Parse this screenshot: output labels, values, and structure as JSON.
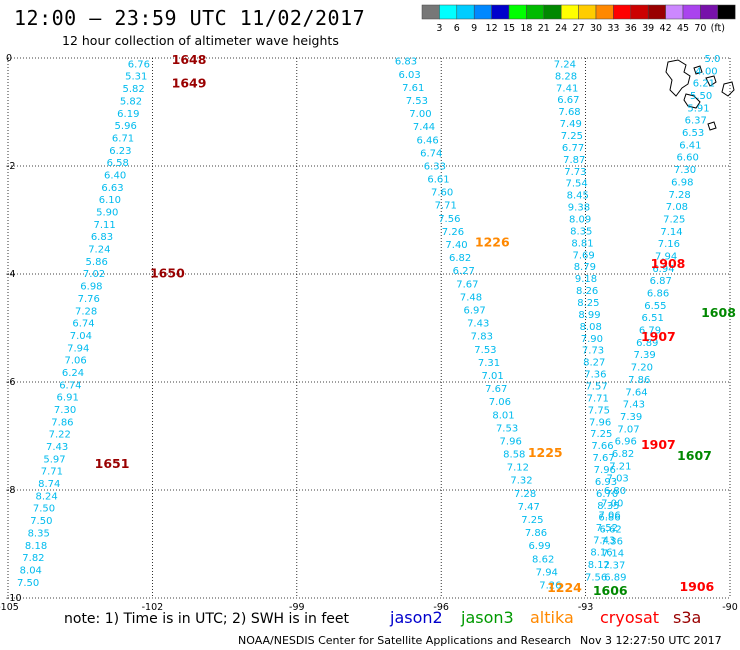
{
  "header": {
    "title": "12:00 – 23:59 UTC 11/02/2017",
    "subtitle": "12 hour collection of altimeter wave heights"
  },
  "scale": {
    "colors": [
      "#777777",
      "#00ffff",
      "#00ccff",
      "#0088ff",
      "#0000cc",
      "#00ff00",
      "#00bb00",
      "#008800",
      "#ffff00",
      "#ffcc00",
      "#ff8800",
      "#ff0000",
      "#cc0000",
      "#990000",
      "#cc88ff",
      "#aa44ee",
      "#7711aa",
      "#000000"
    ],
    "labels": [
      "3",
      "6",
      "9",
      "12",
      "15",
      "18",
      "21",
      "24",
      "27",
      "30",
      "33",
      "36",
      "39",
      "42",
      "45",
      "70",
      "(ft)"
    ]
  },
  "footer": {
    "note": "note: 1) Time is in UTC; 2) SWH is in feet",
    "legend": [
      {
        "label": "jason2",
        "color": "#0000cc"
      },
      {
        "label": "jason3",
        "color": "#009900"
      },
      {
        "label": "altika",
        "color": "#ff8800"
      },
      {
        "label": "cryosat",
        "color": "#ff0000"
      },
      {
        "label": "s3a",
        "color": "#990000"
      }
    ],
    "credit_left": "NOAA/NESDIS Center for Satellite Applications and Research",
    "credit_right": "Nov  3 12:27:50 UTC 2017"
  },
  "chart_data": {
    "type": "scatter",
    "title": "12:00 – 23:59 UTC 11/02/2017",
    "subtitle": "12 hour collection of altimeter wave heights",
    "xlim": [
      -105,
      -90
    ],
    "ylim": [
      -10,
      0
    ],
    "xticks": [
      -105,
      -102,
      -99,
      -96,
      -93,
      -90
    ],
    "yticks": [
      0,
      -2,
      -4,
      -6,
      -8,
      -10
    ],
    "xtick_labels": [
      "-105",
      "-102",
      "-99",
      "-96",
      "-93",
      "-90"
    ],
    "ytick_labels": [
      "0",
      "-2",
      "-4",
      "-6",
      "-8",
      "-10"
    ],
    "grid": true,
    "units": "ft",
    "tracks": [
      {
        "satellite": "s3a",
        "color": "#00bbee",
        "lat0": -0.1,
        "lon0": -102.05,
        "lat1": -9.7,
        "lon1": -104.35,
        "swh": [
          "6.76",
          "5.31",
          "5.82",
          "5.82",
          "6.19",
          "5.96",
          "6.71",
          "6.23",
          "6.58",
          "6.40",
          "6.63",
          "6.10",
          "5.90",
          "7.11",
          "6.83",
          "7.24",
          "5.86",
          "7.02",
          "6.98",
          "7.76",
          "7.28",
          "6.74",
          "7.04",
          "7.94",
          "7.06",
          "6.24",
          "6.74",
          "6.91",
          "7.30",
          "7.86",
          "7.22",
          "7.43",
          "5.97",
          "7.71",
          "8.74",
          "8.24",
          "7.50",
          "7.50",
          "8.35",
          "8.18",
          "7.82",
          "8.04",
          "7.50"
        ]
      },
      {
        "satellite": "altika",
        "color": "#00bbee",
        "lat0": -0.05,
        "lon0": -96.5,
        "lat1": -9.75,
        "lon1": -93.5,
        "swh": [
          "6.83",
          "6.03",
          "7.61",
          "7.53",
          "7.00",
          "7.44",
          "6.46",
          "6.74",
          "6.33",
          "6.61",
          "7.60",
          "7.71",
          "7.56",
          "7.26",
          "7.40",
          "6.82",
          "6.27",
          "7.67",
          "7.48",
          "6.97",
          "7.43",
          "7.83",
          "7.53",
          "7.31",
          "7.01",
          "7.67",
          "7.06",
          "8.01",
          "7.53",
          "7.96",
          "8.58",
          "7.12",
          "7.32",
          "7.28",
          "7.47",
          "7.25",
          "7.86",
          "6.99",
          "8.62",
          "7.94",
          "7.26"
        ]
      },
      {
        "satellite": "cryosat",
        "color": "#00bbee",
        "lat0": -0.1,
        "lon0": -93.2,
        "lat1": -9.6,
        "lon1": -92.15,
        "swh": [
          "7.24",
          "8.28",
          "7.41",
          "6.67",
          "7.68",
          "7.49",
          "7.25",
          "6.77",
          "7.87",
          "7.73",
          "7.54",
          "8.45",
          "9.38",
          "8.09",
          "8.35",
          "8.81",
          "7.69",
          "8.79",
          "9.18",
          "8.26",
          "8.25",
          "8.99",
          "8.08",
          "7.90",
          "7.73",
          "8.27",
          "7.36",
          "7.57",
          "7.71",
          "7.75",
          "7.96",
          "7.25",
          "7.66",
          "7.67",
          "7.96",
          "6.93",
          "6.70",
          "8.35",
          "6.86",
          "6.62",
          "7.36",
          "7.14",
          "7.37",
          "6.89"
        ]
      },
      {
        "satellite": "jason3",
        "color": "#00bbee",
        "lat0": 0.0,
        "lon0": -90.2,
        "lat1": -9.6,
        "lon1": -92.55,
        "swh": [
          "5.0",
          "4.00",
          "6.21",
          "5.50",
          "5.91",
          "6.37",
          "6.53",
          "6.41",
          "6.60",
          "7.30",
          "6.98",
          "7.28",
          "7.08",
          "7.25",
          "7.14",
          "7.16",
          "7.94",
          "6.94",
          "6.87",
          "6.86",
          "6.55",
          "6.51",
          "6.79",
          "6.89",
          "7.39",
          "7.20",
          "7.86",
          "7.64",
          "7.43",
          "7.39",
          "7.07",
          "6.96",
          "6.82",
          "7.21",
          "7.03",
          "6.80",
          "7.00",
          "7.06",
          "7.52",
          "7.43",
          "8.16",
          "8.12",
          "7.56"
        ]
      }
    ],
    "time_labels": [
      {
        "text": "1648",
        "satellite": "s3a",
        "color": "#990000",
        "lon": -101.6,
        "lat": -0.02
      },
      {
        "text": "1649",
        "satellite": "s3a",
        "color": "#990000",
        "lon": -101.6,
        "lat": -0.45
      },
      {
        "text": "1650",
        "satellite": "s3a",
        "color": "#990000",
        "lon": -102.05,
        "lat": -3.97
      },
      {
        "text": "1651",
        "satellite": "s3a",
        "color": "#990000",
        "lon": -103.2,
        "lat": -7.5
      },
      {
        "text": "1226",
        "satellite": "altika",
        "color": "#ff8800",
        "lon": -95.3,
        "lat": -3.4
      },
      {
        "text": "1225",
        "satellite": "altika",
        "color": "#ff8800",
        "lon": -94.2,
        "lat": -7.3
      },
      {
        "text": "1224",
        "satellite": "altika",
        "color": "#ff8800",
        "lon": -93.8,
        "lat": -9.8
      },
      {
        "text": "1908",
        "satellite": "cryosat",
        "color": "#ff0000",
        "lon": -91.65,
        "lat": -3.8
      },
      {
        "text": "1907",
        "satellite": "cryosat",
        "color": "#ff0000",
        "lon": -91.85,
        "lat": -5.15
      },
      {
        "text": "1907",
        "satellite": "cryosat",
        "color": "#ff0000",
        "lon": -91.85,
        "lat": -7.15
      },
      {
        "text": "1906",
        "satellite": "cryosat",
        "color": "#ff0000",
        "lon": -91.05,
        "lat": -9.78
      },
      {
        "text": "1608",
        "satellite": "jason3",
        "color": "#008800",
        "lon": -90.6,
        "lat": -4.7
      },
      {
        "text": "1607",
        "satellite": "jason3",
        "color": "#008800",
        "lon": -91.1,
        "lat": -7.35
      },
      {
        "text": "1606",
        "satellite": "jason3",
        "color": "#008800",
        "lon": -92.85,
        "lat": -9.85
      }
    ]
  }
}
